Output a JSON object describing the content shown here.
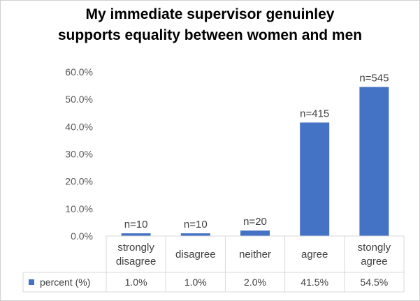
{
  "title_line1": "My immediate supervisor genuinley",
  "title_line2": "supports equality between women and men",
  "chart_data": {
    "type": "bar",
    "title": "My immediate supervisor genuinley supports equality between women and men",
    "categories": [
      [
        "strongly",
        "disagree"
      ],
      [
        "disagree"
      ],
      [
        "neither"
      ],
      [
        "agree"
      ],
      [
        "stongly",
        "agree"
      ]
    ],
    "series": [
      {
        "name": "percent (%)",
        "values": [
          1.0,
          1.0,
          2.0,
          41.5,
          54.5
        ],
        "table_values": [
          "1.0%",
          "1.0%",
          "2.0%",
          "41.5%",
          "54.5%"
        ],
        "color": "#4472c4"
      }
    ],
    "data_labels": [
      "n=10",
      "n=10",
      "n=20",
      "n=415",
      "n=545"
    ],
    "y_ticks": [
      "0.0%",
      "10.0%",
      "20.0%",
      "30.0%",
      "40.0%",
      "50.0%",
      "60.0%"
    ],
    "ylim": [
      0,
      60
    ],
    "grid": false,
    "data_table": true
  }
}
